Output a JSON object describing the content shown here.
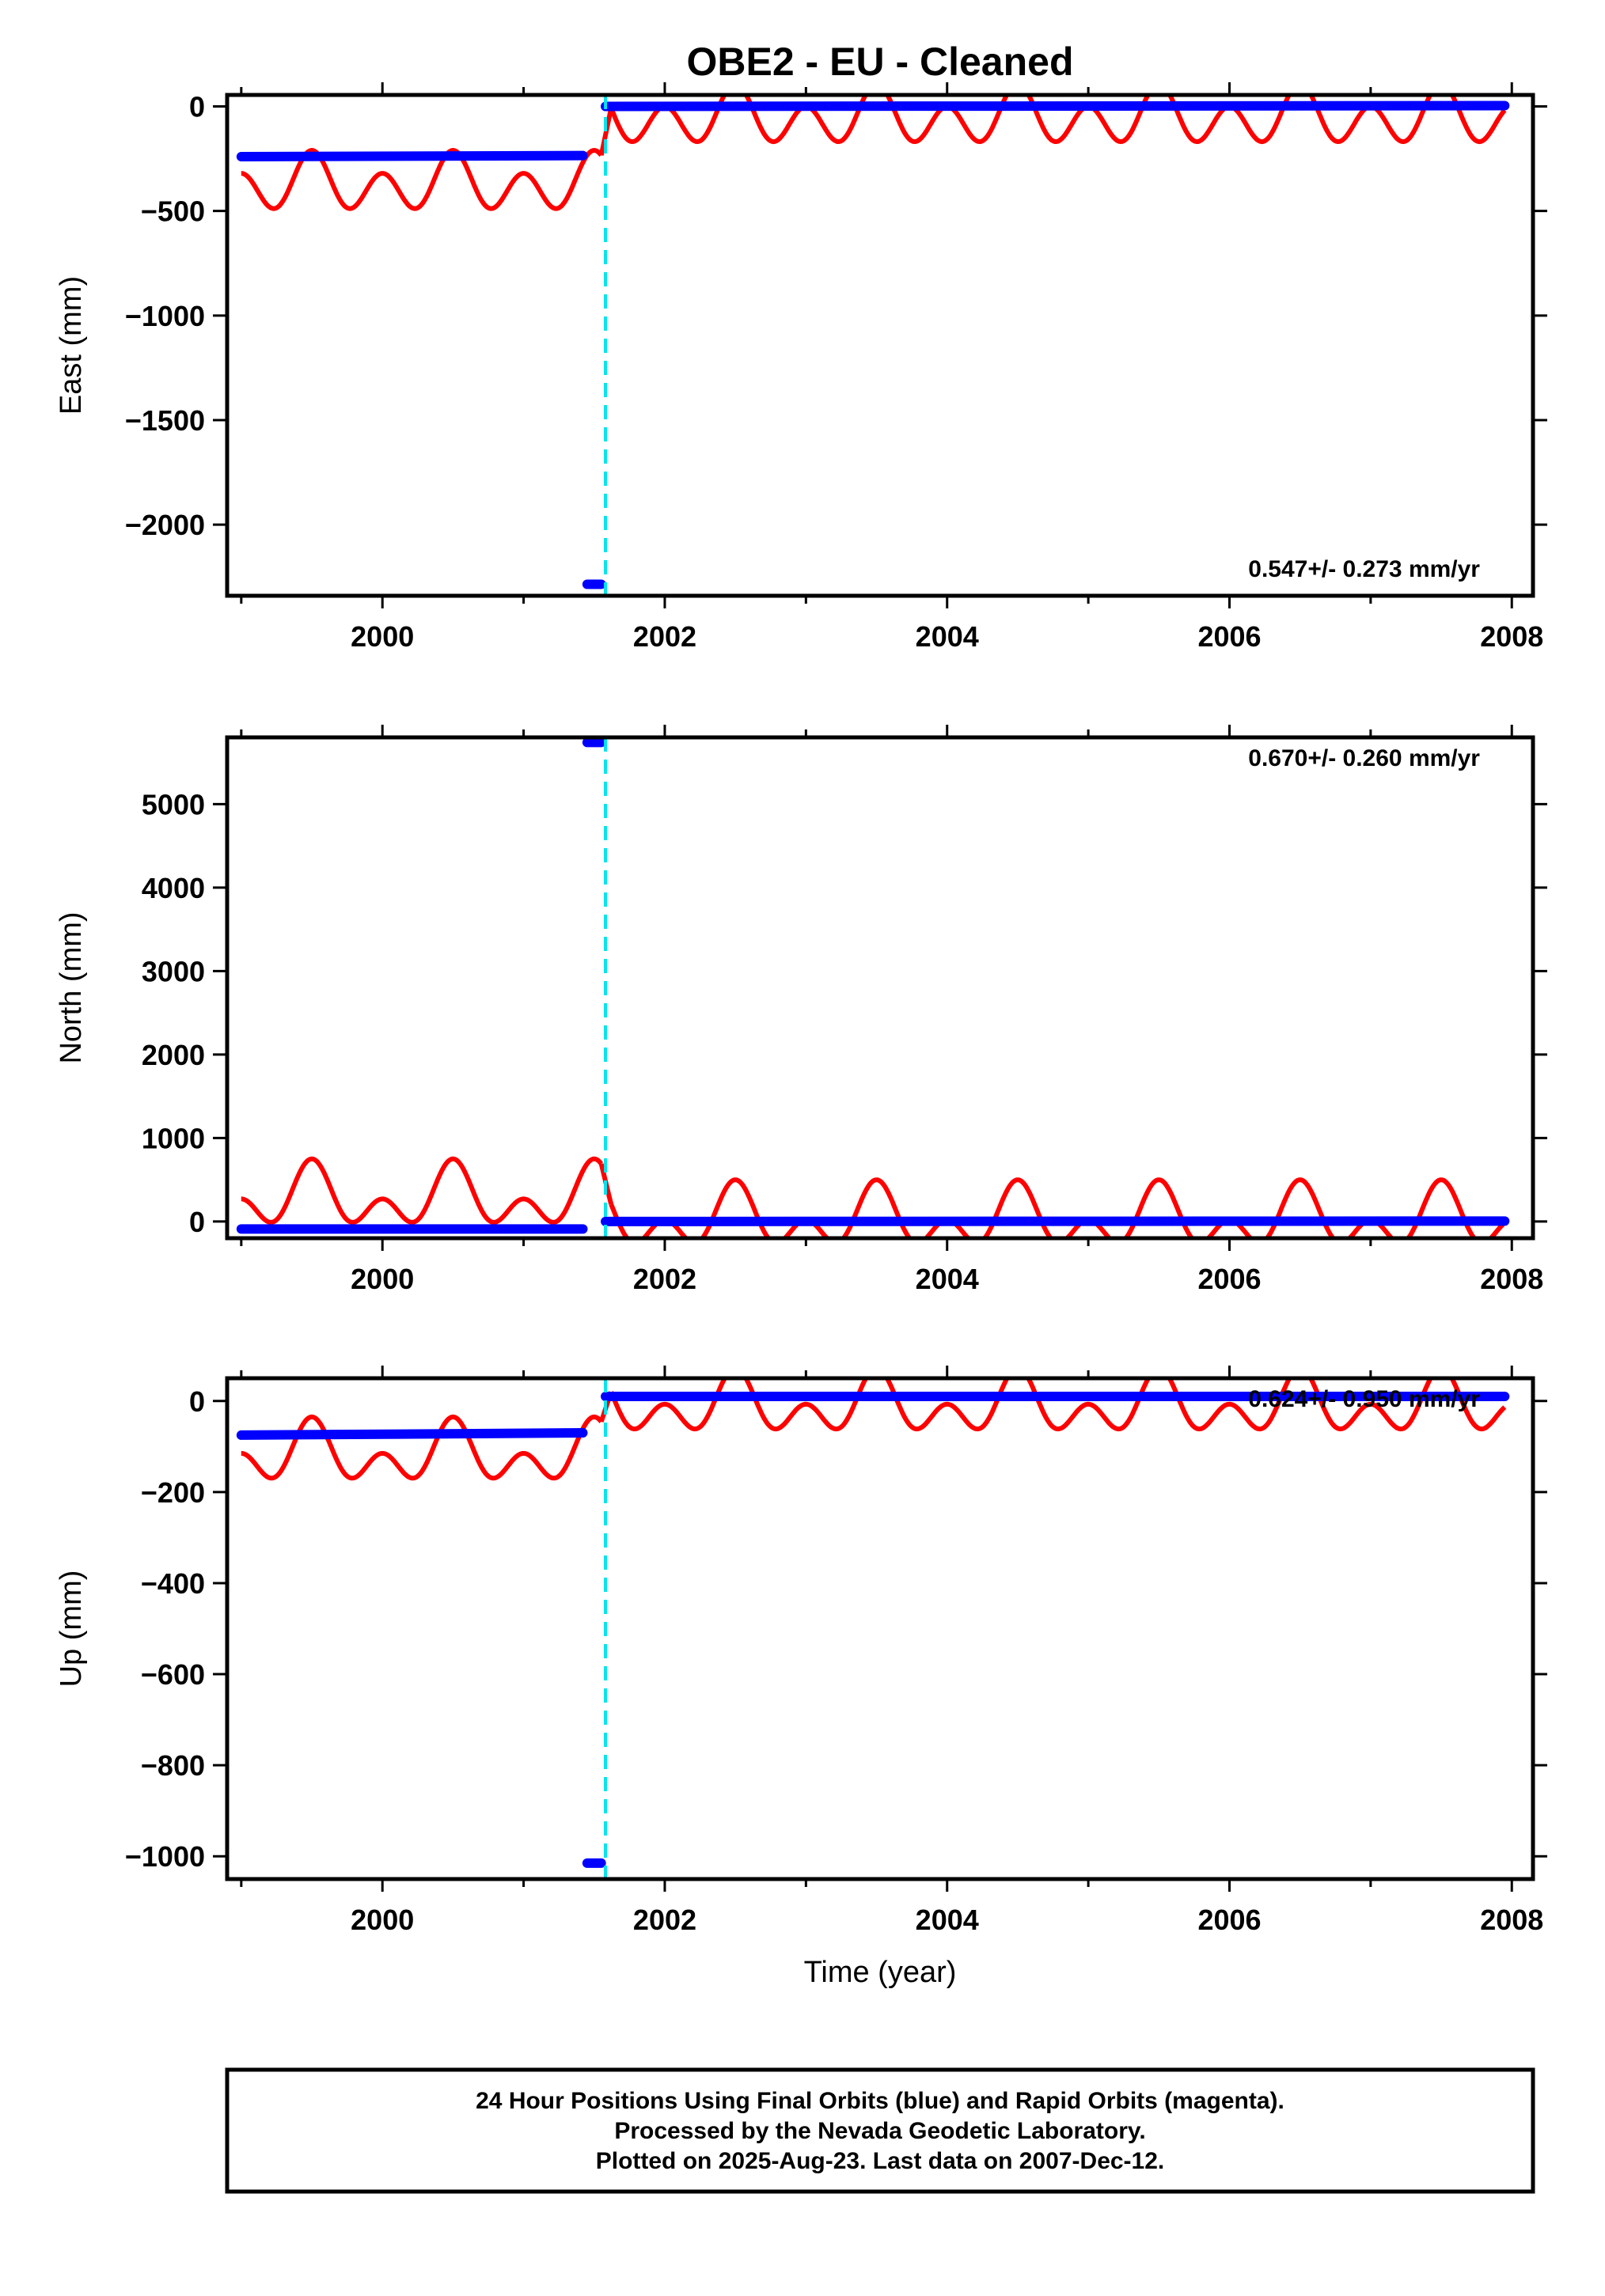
{
  "title": "OBE2  - EU - Cleaned",
  "x_axis_label": "Time (year)",
  "footer": [
    "24 Hour Positions Using Final Orbits (blue) and Rapid Orbits (magenta).",
    "Processed by the Nevada Geodetic Laboratory.",
    "Plotted on 2025-Aug-23. Last data on 2007-Dec-12."
  ],
  "colors": {
    "final_orbit_points": "#0000ff",
    "model_fit": "#ff0000",
    "offset_marker": "#00e5ee",
    "frame": "#000000"
  },
  "chart_data": [
    {
      "type": "scatter",
      "ylabel": "East (mm)",
      "xlim": [
        1998.9,
        2008.15
      ],
      "ylim": [
        -2340,
        55
      ],
      "x_ticks": [
        2000,
        2002,
        2004,
        2006,
        2008
      ],
      "y_ticks": [
        0,
        -500,
        -1000,
        -1500,
        -2000
      ],
      "rate_label": "0.547+/- 0.273 mm/yr",
      "offset_epoch": 2001.58,
      "series": [
        {
          "kind": "points",
          "segments": [
            {
              "x": [
                1999.0,
                2001.42
              ],
              "y": [
                -240,
                -235
              ]
            },
            {
              "x": [
                2001.45,
                2001.55
              ],
              "y": [
                -2285,
                -2285
              ]
            },
            {
              "x": [
                2001.58,
                2007.95
              ],
              "y": [
                0,
                4
              ]
            }
          ]
        },
        {
          "kind": "line",
          "segments": [
            {
              "x": [
                1999.0,
                2001.55
              ],
              "mean": -375,
              "annual_amp": 55,
              "semiannual_amp": 110
            },
            {
              "x": [
                2001.62,
                2007.95
              ],
              "mean": -55,
              "annual_amp": 55,
              "semiannual_amp": 110
            }
          ]
        }
      ]
    },
    {
      "type": "scatter",
      "ylabel": "North (mm)",
      "xlim": [
        1998.9,
        2008.15
      ],
      "ylim": [
        -200,
        5800
      ],
      "x_ticks": [
        2000,
        2002,
        2004,
        2006,
        2008
      ],
      "y_ticks": [
        0,
        1000,
        2000,
        3000,
        4000,
        5000
      ],
      "rate_label": "0.670+/- 0.260 mm/yr",
      "offset_epoch": 2001.58,
      "series": [
        {
          "kind": "points",
          "segments": [
            {
              "x": [
                1999.0,
                2001.42
              ],
              "y": [
                -90,
                -90
              ]
            },
            {
              "x": [
                2001.45,
                2001.55
              ],
              "y": [
                5740,
                5740
              ]
            },
            {
              "x": [
                2001.58,
                2007.95
              ],
              "y": [
                0,
                5
              ]
            }
          ]
        },
        {
          "kind": "line",
          "segments": [
            {
              "x": [
                1999.0,
                2001.55
              ],
              "mean": 265,
              "annual_amp": 240,
              "semiannual_amp": 245
            },
            {
              "x": [
                2001.62,
                2007.95
              ],
              "mean": 15,
              "annual_amp": 240,
              "semiannual_amp": 245
            }
          ]
        }
      ]
    },
    {
      "type": "scatter",
      "ylabel": "Up (mm)",
      "xlim": [
        1998.9,
        2008.15
      ],
      "ylim": [
        -1050,
        50
      ],
      "x_ticks": [
        2000,
        2002,
        2004,
        2006,
        2008
      ],
      "y_ticks": [
        0,
        -200,
        -400,
        -600,
        -800,
        -1000
      ],
      "rate_label": "0.624+/- 0.950 mm/yr",
      "offset_epoch": 2001.58,
      "series": [
        {
          "kind": "points",
          "segments": [
            {
              "x": [
                1999.0,
                2001.42
              ],
              "y": [
                -75,
                -70
              ]
            },
            {
              "x": [
                2001.45,
                2001.55
              ],
              "y": [
                -1015,
                -1015
              ]
            },
            {
              "x": [
                2001.58,
                2007.95
              ],
              "y": [
                10,
                10
              ]
            }
          ]
        },
        {
          "kind": "line",
          "segments": [
            {
              "x": [
                1999.0,
                2001.55
              ],
              "mean": -120,
              "annual_amp": 40,
              "semiannual_amp": 45
            },
            {
              "x": [
                2001.62,
                2007.95
              ],
              "mean": -12,
              "annual_amp": 40,
              "semiannual_amp": 45
            }
          ]
        }
      ]
    }
  ]
}
